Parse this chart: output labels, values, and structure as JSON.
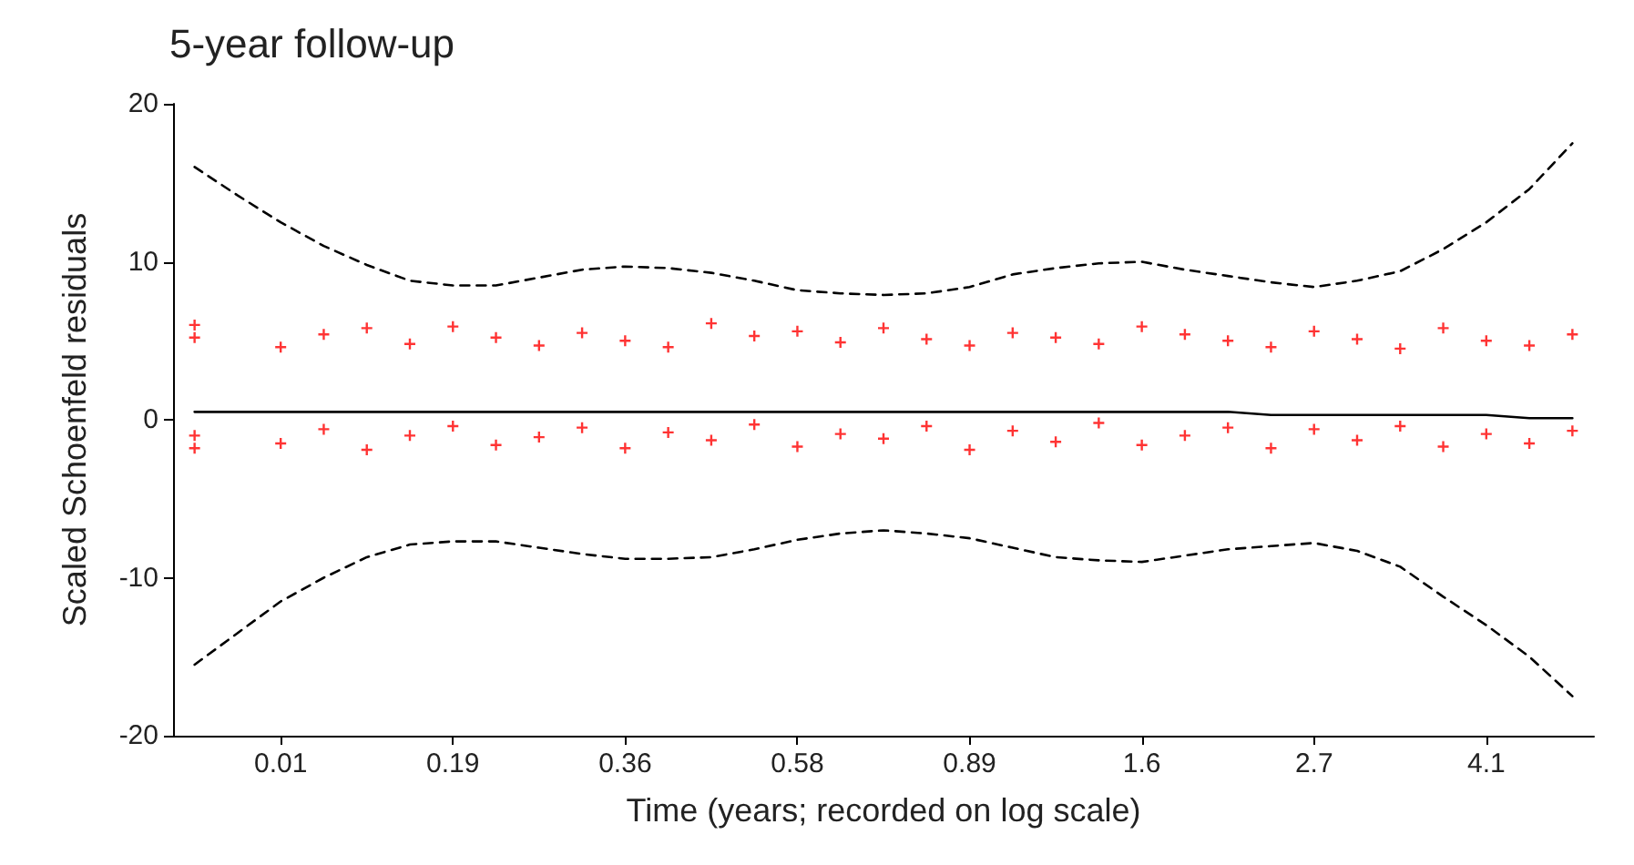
{
  "chart_data": {
    "type": "scatter",
    "title": "5-year follow-up",
    "xlabel": "Time (years; recorded on log scale)",
    "ylabel": "Scaled Schoenfeld residuals",
    "categories": [
      null,
      null,
      "0.01",
      null,
      null,
      null,
      "0.19",
      null,
      null,
      null,
      "0.36",
      null,
      null,
      null,
      "0.58",
      null,
      null,
      null,
      "0.89",
      null,
      null,
      null,
      "1.6",
      null,
      null,
      null,
      "2.7",
      null,
      null,
      null,
      "4.1",
      null,
      null
    ],
    "ylim": [
      -20,
      20
    ],
    "yticks": [
      -20,
      -10,
      0,
      10,
      20
    ],
    "grid": false,
    "marker": "cross",
    "series": [
      {
        "color": "#ff0000",
        "values": [
          5.2,
          null,
          4.6,
          5.4,
          5.8,
          4.8,
          5.9,
          5.2,
          4.7,
          5.5,
          5.0,
          4.6,
          6.1,
          5.3,
          5.6,
          4.9,
          5.8,
          5.1,
          4.7,
          5.5,
          5.2,
          4.8,
          5.9,
          5.4,
          5.0,
          4.6,
          5.6,
          5.1,
          4.5,
          5.8,
          5.0,
          4.7,
          5.4
        ]
      },
      {
        "color": "#ff0000",
        "values": [
          -1.0,
          null,
          -1.5,
          -0.6,
          -1.9,
          -1.0,
          -0.4,
          -1.6,
          -1.1,
          -0.5,
          -1.8,
          -0.8,
          -1.3,
          -0.3,
          -1.7,
          -0.9,
          -1.2,
          -0.4,
          -1.9,
          -0.7,
          -1.4,
          -0.2,
          -1.6,
          -1.0,
          -0.5,
          -1.8,
          -0.6,
          -1.3,
          -0.4,
          -1.7,
          -0.9,
          -1.5,
          -0.7
        ]
      },
      {
        "color": "#ff0000",
        "values": [
          6.0,
          null,
          null,
          null,
          null,
          null,
          null,
          null,
          null,
          null,
          null,
          null,
          null,
          null,
          null,
          null,
          null,
          null,
          null,
          null,
          null,
          null,
          null,
          null,
          null,
          null,
          null,
          null,
          null,
          null,
          null,
          null,
          null
        ]
      },
      {
        "color": "#ff0000",
        "values": [
          -1.8,
          null,
          null,
          null,
          null,
          null,
          null,
          null,
          null,
          null,
          null,
          null,
          null,
          null,
          null,
          null,
          null,
          null,
          null,
          null,
          null,
          null,
          null,
          null,
          null,
          null,
          null,
          null,
          null,
          null,
          null,
          null,
          null
        ]
      },
      {
        "type": "line",
        "color": "#000000",
        "line_style": "solid",
        "marker": "none",
        "values": [
          0.5,
          0.5,
          0.5,
          0.5,
          0.5,
          0.5,
          0.5,
          0.5,
          0.5,
          0.5,
          0.5,
          0.5,
          0.5,
          0.5,
          0.5,
          0.5,
          0.5,
          0.5,
          0.5,
          0.5,
          0.5,
          0.5,
          0.5,
          0.5,
          0.5,
          0.3,
          0.3,
          0.3,
          0.3,
          0.3,
          0.3,
          0.1,
          0.1
        ]
      },
      {
        "type": "line",
        "color": "#000000",
        "line_style": "dashed",
        "marker": "none",
        "values": [
          16,
          14.2,
          12.5,
          11,
          9.8,
          8.8,
          8.5,
          8.5,
          9,
          9.5,
          9.7,
          9.6,
          9.3,
          8.8,
          8.2,
          8,
          7.9,
          8,
          8.4,
          9.2,
          9.6,
          9.9,
          10,
          9.5,
          9.1,
          8.7,
          8.4,
          8.8,
          9.4,
          10.8,
          12.5,
          14.6,
          17.5
        ]
      },
      {
        "type": "line",
        "color": "#000000",
        "line_style": "dashed",
        "marker": "none",
        "values": [
          -15.5,
          -13.5,
          -11.5,
          -10,
          -8.7,
          -7.9,
          -7.7,
          -7.7,
          -8.1,
          -8.5,
          -8.8,
          -8.8,
          -8.7,
          -8.2,
          -7.6,
          -7.2,
          -7,
          -7.2,
          -7.5,
          -8.1,
          -8.7,
          -8.9,
          -9,
          -8.6,
          -8.2,
          -8,
          -7.8,
          -8.3,
          -9.3,
          -11.2,
          -13,
          -15,
          -17.5
        ]
      }
    ]
  }
}
